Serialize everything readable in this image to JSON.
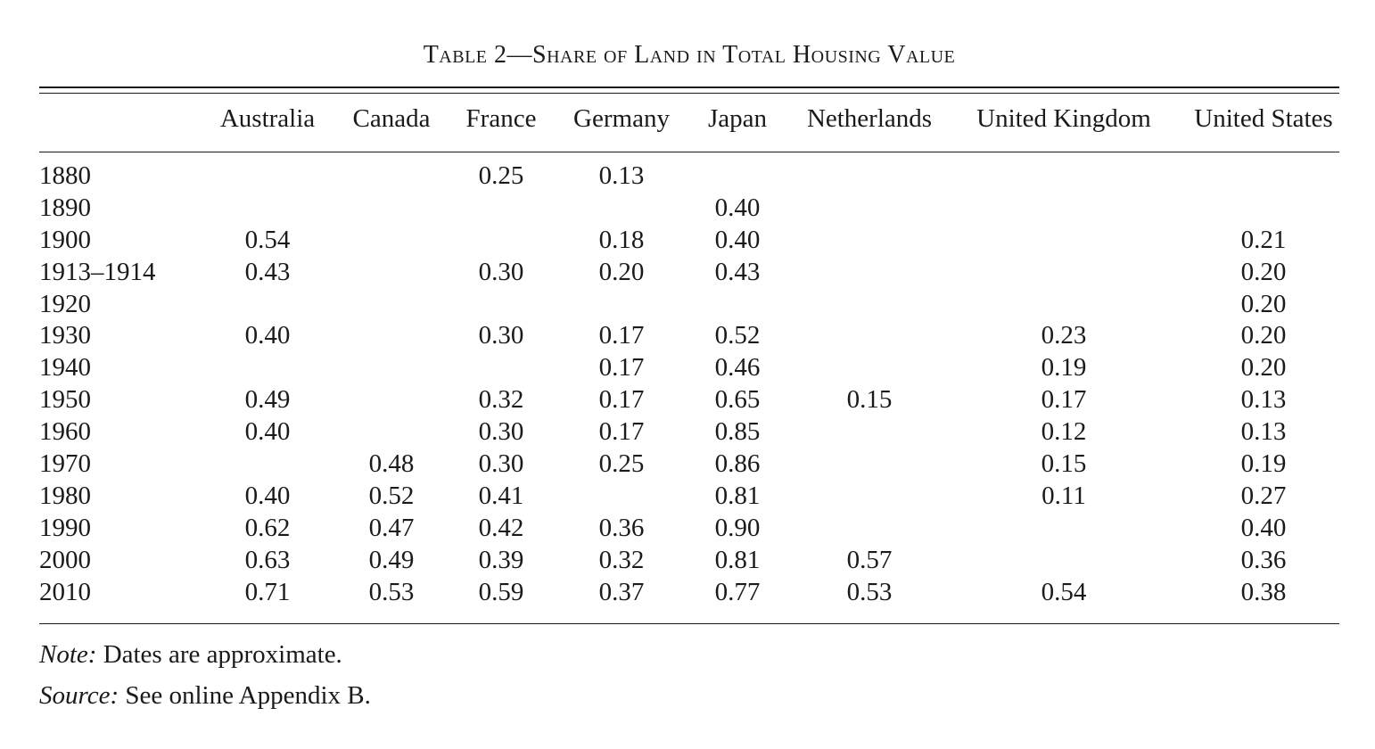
{
  "title": "Table 2—Share of Land in Total Housing Value",
  "columns": [
    "Australia",
    "Canada",
    "France",
    "Germany",
    "Japan",
    "Netherlands",
    "United Kingdom",
    "United States"
  ],
  "rows": [
    {
      "year": "1880",
      "values": [
        "",
        "",
        "0.25",
        "0.13",
        "",
        "",
        "",
        ""
      ]
    },
    {
      "year": "1890",
      "values": [
        "",
        "",
        "",
        "",
        "0.40",
        "",
        "",
        ""
      ]
    },
    {
      "year": "1900",
      "values": [
        "0.54",
        "",
        "",
        "0.18",
        "0.40",
        "",
        "",
        "0.21"
      ]
    },
    {
      "year": "1913–1914",
      "values": [
        "0.43",
        "",
        "0.30",
        "0.20",
        "0.43",
        "",
        "",
        "0.20"
      ]
    },
    {
      "year": "1920",
      "values": [
        "",
        "",
        "",
        "",
        "",
        "",
        "",
        "0.20"
      ]
    },
    {
      "year": "1930",
      "values": [
        "0.40",
        "",
        "0.30",
        "0.17",
        "0.52",
        "",
        "0.23",
        "0.20"
      ]
    },
    {
      "year": "1940",
      "values": [
        "",
        "",
        "",
        "0.17",
        "0.46",
        "",
        "0.19",
        "0.20"
      ]
    },
    {
      "year": "1950",
      "values": [
        "0.49",
        "",
        "0.32",
        "0.17",
        "0.65",
        "0.15",
        "0.17",
        "0.13"
      ]
    },
    {
      "year": "1960",
      "values": [
        "0.40",
        "",
        "0.30",
        "0.17",
        "0.85",
        "",
        "0.12",
        "0.13"
      ]
    },
    {
      "year": "1970",
      "values": [
        "",
        "0.48",
        "0.30",
        "0.25",
        "0.86",
        "",
        "0.15",
        "0.19"
      ]
    },
    {
      "year": "1980",
      "values": [
        "0.40",
        "0.52",
        "0.41",
        "",
        "0.81",
        "",
        "0.11",
        "0.27"
      ]
    },
    {
      "year": "1990",
      "values": [
        "0.62",
        "0.47",
        "0.42",
        "0.36",
        "0.90",
        "",
        "",
        "0.40"
      ]
    },
    {
      "year": "2000",
      "values": [
        "0.63",
        "0.49",
        "0.39",
        "0.32",
        "0.81",
        "0.57",
        "",
        "0.36"
      ]
    },
    {
      "year": "2010",
      "values": [
        "0.71",
        "0.53",
        "0.59",
        "0.37",
        "0.77",
        "0.53",
        "0.54",
        "0.38"
      ]
    }
  ],
  "note": {
    "label": "Note:",
    "text": " Dates are approximate."
  },
  "source": {
    "label": "Source:",
    "text": " See online Appendix B."
  }
}
